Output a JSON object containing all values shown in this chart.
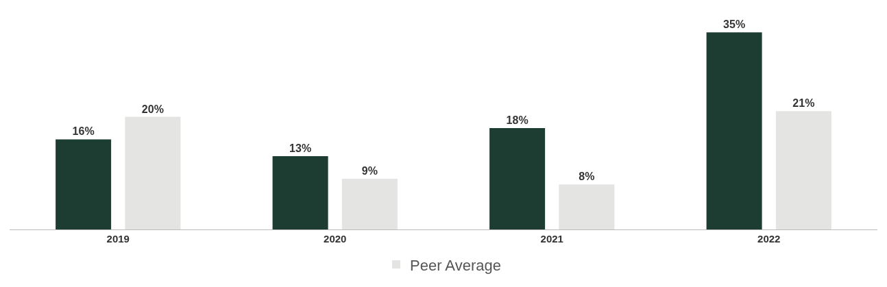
{
  "chart_data": {
    "type": "bar",
    "categories": [
      "2019",
      "2020",
      "2021",
      "2022"
    ],
    "series": [
      {
        "color": "#1e3d32",
        "values": [
          16,
          13,
          18,
          35
        ],
        "value_labels": [
          "16%",
          "13%",
          "18%",
          "35%"
        ]
      },
      {
        "name": "Peer Average",
        "color": "#e4e4e2",
        "values": [
          20,
          9,
          8,
          21
        ],
        "value_labels": [
          "20%",
          "9%",
          "8%",
          "21%"
        ]
      }
    ],
    "legend": "bottom",
    "grid": false
  }
}
